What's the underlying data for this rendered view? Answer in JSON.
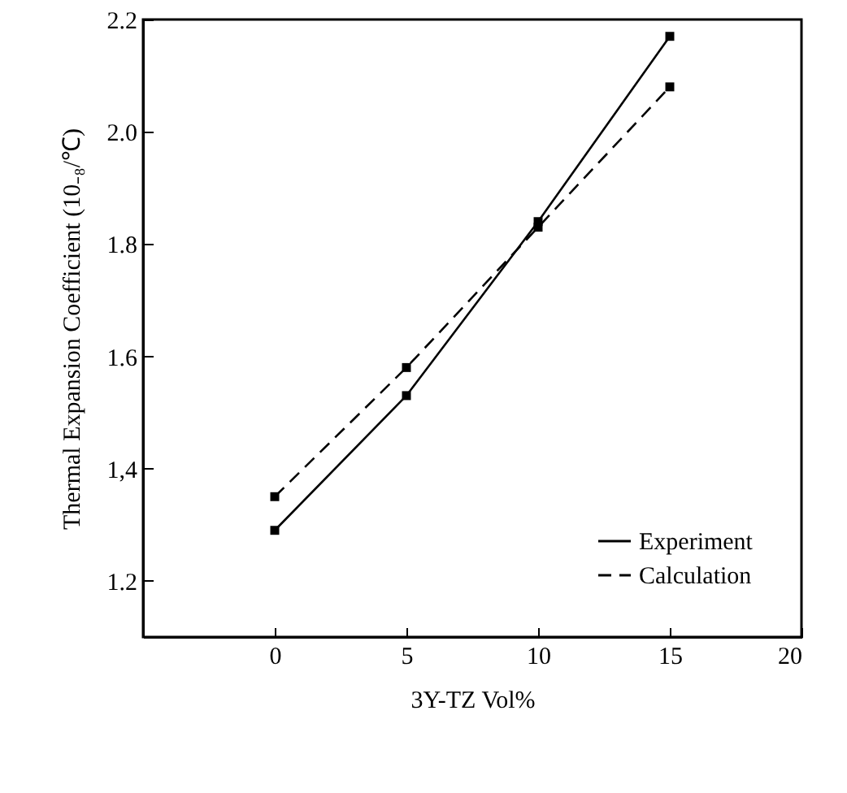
{
  "chart_data": {
    "type": "line",
    "xlabel": "3Y-TZ  Vol%",
    "ylabel": "Thermal Expansion Coefficient (10₋₈/℃)",
    "x": [
      0,
      5,
      10,
      15
    ],
    "series": [
      {
        "name": "Experiment",
        "color": "#000000",
        "line_style": "solid",
        "values": [
          1.29,
          1.53,
          1.84,
          2.17
        ]
      },
      {
        "name": "Calculation",
        "color": "#000000",
        "line_style": "dashed",
        "values": [
          1.35,
          1.58,
          1.83,
          2.08
        ]
      }
    ],
    "xlim": [
      -5,
      20
    ],
    "xticks": [
      0,
      5,
      10,
      15,
      20
    ],
    "ylim": [
      1.1,
      2.2
    ],
    "yticks": [
      {
        "value": 1.2,
        "label": "1.2"
      },
      {
        "value": 1.4,
        "label": "1,4"
      },
      {
        "value": 1.6,
        "label": "1.6"
      },
      {
        "value": 1.8,
        "label": "1.8"
      },
      {
        "value": 2.0,
        "label": "2.0"
      },
      {
        "value": 2.2,
        "label": "2.2"
      }
    ],
    "grid": false,
    "legend": "bottom right",
    "marker": "square"
  }
}
